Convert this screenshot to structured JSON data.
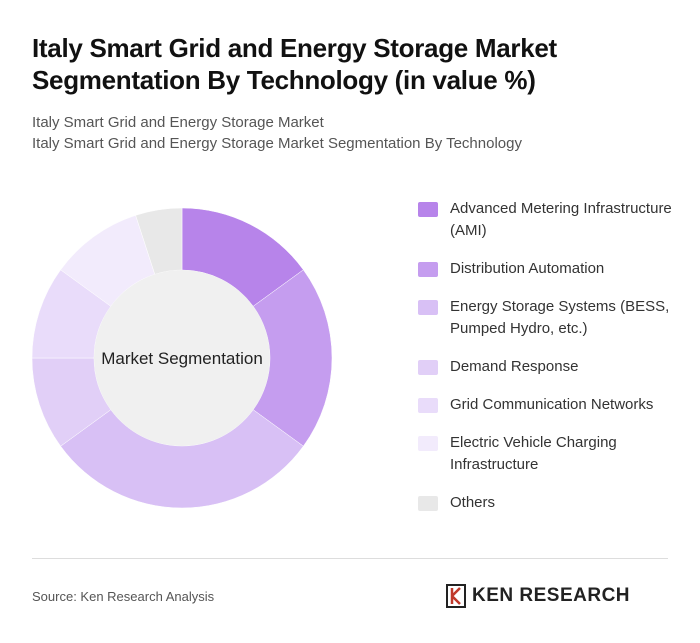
{
  "chart_data": {
    "type": "donut",
    "title": "Italy Smart Grid and Energy Storage Market Segmentation By Technology (in value %)",
    "subtitles": [
      "Italy Smart Grid and Energy Storage Market",
      "Italy Smart Grid and Energy Storage Market Segmentation By Technology"
    ],
    "center_label": "Market Segmentation",
    "categories": [
      "Advanced Metering Infrastructure (AMI)",
      "Distribution Automation",
      "Energy Storage Systems (BESS, Pumped Hydro, etc.)",
      "Demand Response",
      "Grid Communication Networks",
      "Electric Vehicle Charging Infrastructure",
      "Others"
    ],
    "values": [
      15,
      20,
      30,
      10,
      10,
      10,
      5
    ],
    "colors": [
      "#b784ea",
      "#c59def",
      "#d8c0f5",
      "#e1cff7",
      "#e9dcfa",
      "#f2ebfc",
      "#e8e8e8"
    ],
    "source": "Source: Ken Research Analysis",
    "logo_text": "KEN RESEARCH"
  }
}
